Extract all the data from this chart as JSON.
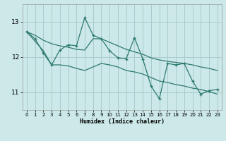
{
  "background_color": "#cce8e8",
  "grid_color": "#aacccc",
  "line_color": "#2d7a6e",
  "xlabel": "Humidex (Indice chaleur)",
  "x_data": [
    0,
    1,
    2,
    3,
    4,
    5,
    6,
    7,
    8,
    9,
    10,
    11,
    12,
    13,
    14,
    15,
    16,
    17,
    18,
    19,
    20,
    21,
    22,
    23
  ],
  "y_main": [
    12.72,
    12.52,
    12.12,
    11.78,
    12.2,
    12.35,
    12.32,
    13.12,
    12.62,
    12.52,
    12.18,
    11.98,
    11.95,
    12.55,
    11.95,
    11.18,
    10.82,
    11.82,
    11.78,
    11.82,
    11.32,
    10.95,
    11.05,
    11.08
  ],
  "y_upper": [
    12.72,
    12.62,
    12.48,
    12.38,
    12.32,
    12.28,
    12.22,
    12.2,
    12.52,
    12.52,
    12.42,
    12.32,
    12.22,
    12.15,
    12.08,
    11.98,
    11.92,
    11.88,
    11.85,
    11.82,
    11.78,
    11.72,
    11.68,
    11.62
  ],
  "y_lower": [
    12.72,
    12.45,
    12.18,
    11.78,
    11.78,
    11.75,
    11.68,
    11.62,
    11.72,
    11.82,
    11.78,
    11.72,
    11.62,
    11.58,
    11.52,
    11.42,
    11.32,
    11.28,
    11.22,
    11.18,
    11.12,
    11.08,
    11.02,
    10.95
  ],
  "ylim": [
    10.5,
    13.5
  ],
  "xlim": [
    -0.5,
    23.5
  ],
  "yticks": [
    11,
    12,
    13
  ],
  "xticks": [
    0,
    1,
    2,
    3,
    4,
    5,
    6,
    7,
    8,
    9,
    10,
    11,
    12,
    13,
    14,
    15,
    16,
    17,
    18,
    19,
    20,
    21,
    22,
    23
  ]
}
